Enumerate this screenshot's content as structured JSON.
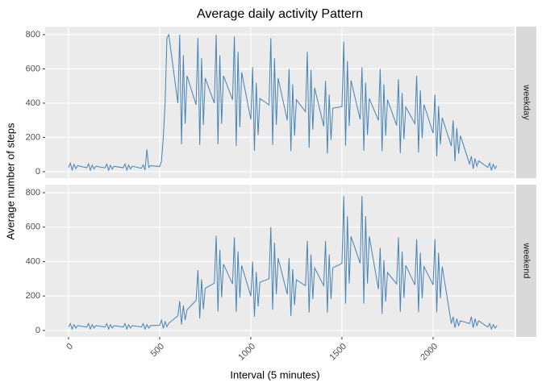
{
  "chart_data": {
    "type": "line",
    "title": "Average daily activity Pattern",
    "x_label": "Interval (5 minutes)",
    "y_label": "Average number of steps",
    "color": "#4682b4",
    "x": [
      0,
      10,
      20,
      30,
      40,
      50,
      100,
      110,
      120,
      130,
      140,
      150,
      200,
      210,
      220,
      230,
      240,
      250,
      300,
      310,
      320,
      330,
      340,
      350,
      400,
      410,
      420,
      430,
      440,
      450,
      500,
      510,
      520,
      530,
      540,
      550,
      600,
      610,
      620,
      630,
      640,
      650,
      700,
      710,
      720,
      730,
      740,
      750,
      800,
      810,
      820,
      830,
      840,
      850,
      900,
      910,
      920,
      930,
      940,
      950,
      1000,
      1010,
      1020,
      1030,
      1040,
      1050,
      1100,
      1110,
      1120,
      1130,
      1140,
      1150,
      1200,
      1210,
      1220,
      1230,
      1240,
      1250,
      1300,
      1310,
      1320,
      1330,
      1340,
      1350,
      1400,
      1410,
      1420,
      1430,
      1440,
      1450,
      1500,
      1510,
      1520,
      1530,
      1540,
      1550,
      1600,
      1610,
      1620,
      1630,
      1640,
      1650,
      1700,
      1710,
      1720,
      1730,
      1740,
      1750,
      1800,
      1810,
      1820,
      1830,
      1840,
      1850,
      1900,
      1910,
      1920,
      1930,
      1940,
      1950,
      2000,
      2010,
      2020,
      2030,
      2040,
      2050,
      2100,
      2110,
      2120,
      2130,
      2140,
      2150,
      2200,
      2210,
      2220,
      2230,
      2240,
      2250,
      2300,
      2310,
      2320,
      2330,
      2340,
      2350
    ],
    "xlim": [
      -128,
      2447
    ],
    "xticks": [
      0,
      500,
      1000,
      1500,
      2000
    ],
    "ylim": [
      -38,
      847
    ],
    "yticks": [
      0,
      200,
      400,
      600,
      800
    ],
    "panels": [
      {
        "label": "weekday",
        "values": [
          25,
          50,
          10,
          43,
          18,
          35,
          23,
          45,
          9,
          38,
          16,
          32,
          22,
          44,
          9,
          37,
          15,
          31,
          23,
          45,
          9,
          38,
          16,
          32,
          20,
          40,
          10,
          130,
          25,
          35,
          30,
          60,
          200,
          400,
          780,
          800,
          400,
          800,
          160,
          680,
          280,
          560,
          390,
          780,
          156,
          663,
          273,
          546,
          400,
          800,
          160,
          680,
          280,
          560,
          420,
          790,
          150,
          700,
          260,
          580,
          305,
          610,
          122,
          519,
          214,
          427,
          390,
          780,
          156,
          663,
          273,
          546,
          300,
          600,
          120,
          510,
          210,
          420,
          350,
          700,
          140,
          595,
          245,
          490,
          265,
          530,
          106,
          451,
          186,
          371,
          380,
          760,
          152,
          646,
          266,
          532,
          305,
          610,
          122,
          519,
          214,
          427,
          300,
          600,
          120,
          510,
          210,
          420,
          270,
          540,
          108,
          459,
          189,
          378,
          280,
          560,
          112,
          476,
          196,
          392,
          225,
          450,
          90,
          383,
          158,
          315,
          150,
          300,
          60,
          255,
          105,
          210,
          45,
          90,
          18,
          77,
          32,
          63,
          25,
          50,
          10,
          43,
          18,
          35
        ]
      },
      {
        "label": "weekend",
        "values": [
          20,
          40,
          8,
          34,
          14,
          28,
          20,
          40,
          8,
          34,
          14,
          28,
          20,
          40,
          8,
          34,
          14,
          28,
          20,
          40,
          8,
          34,
          14,
          28,
          20,
          40,
          8,
          34,
          14,
          28,
          30,
          60,
          12,
          51,
          21,
          42,
          85,
          170,
          34,
          145,
          60,
          119,
          175,
          350,
          70,
          298,
          123,
          245,
          275,
          550,
          110,
          468,
          193,
          385,
          270,
          540,
          108,
          459,
          189,
          378,
          200,
          400,
          80,
          340,
          140,
          280,
          300,
          600,
          120,
          510,
          210,
          420,
          210,
          420,
          84,
          357,
          147,
          294,
          260,
          520,
          104,
          442,
          182,
          364,
          260,
          520,
          104,
          442,
          182,
          364,
          390,
          780,
          156,
          663,
          273,
          546,
          390,
          780,
          156,
          663,
          273,
          546,
          240,
          480,
          96,
          408,
          168,
          336,
          270,
          540,
          108,
          459,
          189,
          378,
          265,
          530,
          106,
          451,
          186,
          371,
          265,
          530,
          106,
          451,
          186,
          371,
          40,
          80,
          16,
          68,
          28,
          56,
          40,
          80,
          16,
          68,
          28,
          56,
          20,
          40,
          8,
          34,
          14,
          28
        ]
      }
    ]
  }
}
